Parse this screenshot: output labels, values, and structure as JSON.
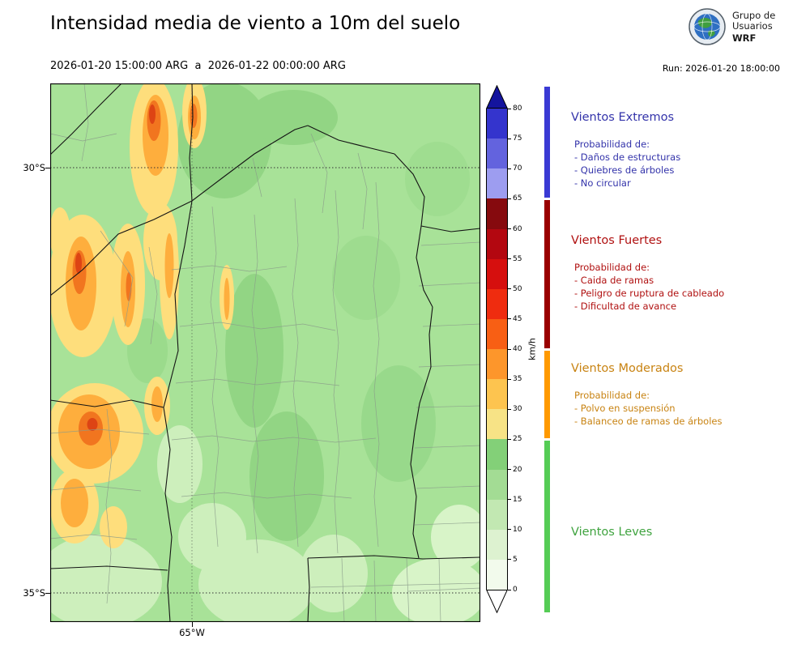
{
  "header": {
    "title": "Intensidad media de viento a 10m del suelo",
    "subtitle": "2026-01-20 15:00:00 ARG  a  2026-01-22 00:00:00 ARG",
    "run_label": "Run: 2026-01-20 18:00:00",
    "logo": {
      "org_line1": "Grupo de",
      "org_line2": "Usuarios",
      "model": "WRF"
    }
  },
  "map": {
    "y_ticks": [
      "30°S",
      "35°S"
    ],
    "x_ticks": [
      "65°W"
    ]
  },
  "colorbar": {
    "unit": "km/h",
    "ticks": [
      0,
      5,
      10,
      15,
      20,
      25,
      30,
      35,
      40,
      45,
      50,
      55,
      60,
      65,
      70,
      75,
      80
    ],
    "colors": [
      "#f2faec",
      "#ddf2d0",
      "#c2e8b2",
      "#a3dc94",
      "#83d078",
      "#f7e386",
      "#fdc44f",
      "#fd962b",
      "#f85f14",
      "#ef2c0f",
      "#d60f0e",
      "#b30710",
      "#860a0e",
      "#9d9df0",
      "#6363de",
      "#3434cd"
    ],
    "over_color": "#14149e",
    "under_color": "#ffffff"
  },
  "legend": {
    "categories": [
      {
        "id": "extremos",
        "title": "Vientos Extremos",
        "color": "#3333aa",
        "strip_color": "#3a3ad4",
        "min": 65,
        "max": null,
        "prob_label": "Probabilidad de:",
        "items": [
          "- Daños de estructuras",
          "- Quiebres de árboles",
          "- No circular"
        ]
      },
      {
        "id": "fuertes",
        "title": "Vientos Fuertes",
        "color": "#b01010",
        "strip_color": "#990000",
        "min": 40,
        "max": 65,
        "prob_label": "Probabilidad de:",
        "items": [
          "- Caida de ramas",
          "- Peligro de ruptura de cableado",
          "- Dificultad de avance"
        ]
      },
      {
        "id": "moderados",
        "title": "Vientos Moderados",
        "color": "#c88312",
        "strip_color": "#ff9900",
        "min": 25,
        "max": 40,
        "prob_label": "Probabilidad de:",
        "items": [
          "- Polvo en suspensión",
          "- Balanceo de ramas de árboles"
        ]
      },
      {
        "id": "leves",
        "title": "Vientos Leves",
        "color": "#3fa33f",
        "strip_color": "#55cc55",
        "min": 0,
        "max": 25,
        "prob_label": "",
        "items": []
      }
    ]
  }
}
